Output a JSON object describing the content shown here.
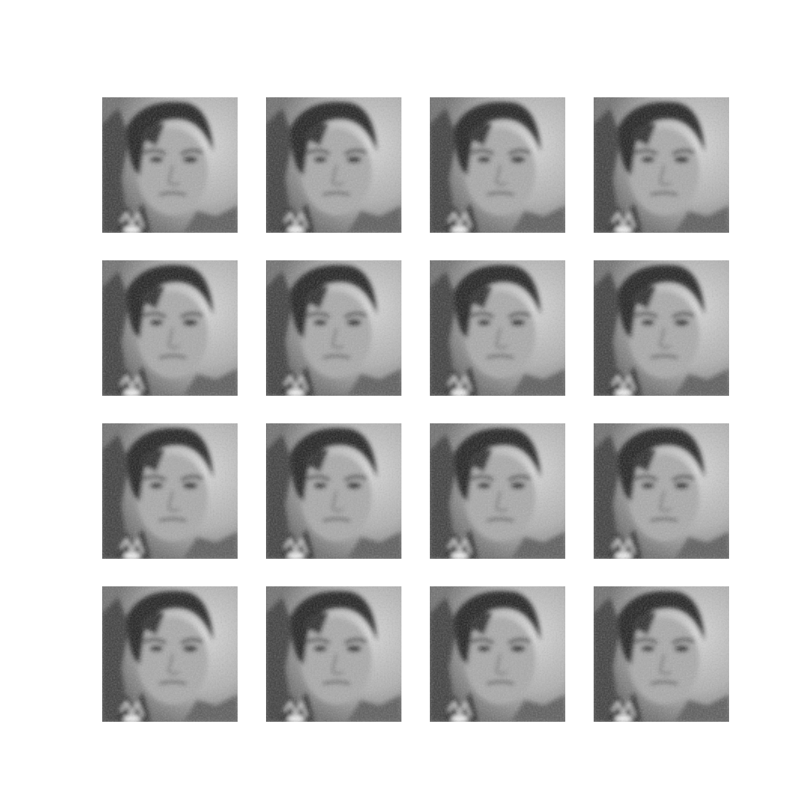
{
  "figure": {
    "rows": 4,
    "cols": 4,
    "tiles": [
      {
        "subject": "face"
      },
      {
        "subject": "face"
      },
      {
        "subject": "face"
      },
      {
        "subject": "face"
      },
      {
        "subject": "face"
      },
      {
        "subject": "face"
      },
      {
        "subject": "face"
      },
      {
        "subject": "face"
      },
      {
        "subject": "face"
      },
      {
        "subject": "face"
      },
      {
        "subject": "face"
      },
      {
        "subject": "face"
      },
      {
        "subject": "face"
      },
      {
        "subject": "face"
      },
      {
        "subject": "face"
      },
      {
        "subject": "face"
      }
    ],
    "colors": {
      "background": "#ffffff",
      "dark": "#1e1e1e",
      "mid": "#8a8a8a",
      "light": "#d8d8d8",
      "skin": "#a9a9a9"
    }
  }
}
